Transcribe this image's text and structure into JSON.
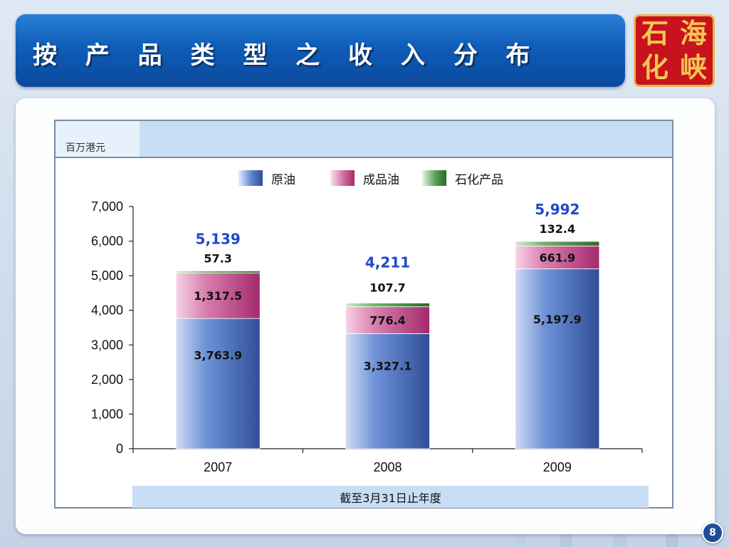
{
  "slide": {
    "title": "按 产 品 类 型 之 收 入 分 布",
    "logo_chars": [
      "石",
      "海",
      "化",
      "峡"
    ],
    "page_number": "8"
  },
  "colors": {
    "title_bar": "#0f5cb8",
    "crude": "#5b82d0",
    "refined": "#d36aa2",
    "petrochemical": "#58a055",
    "total_label": "#1f49c8",
    "logo_red": "#c8121e",
    "logo_gold": "#f3c651"
  },
  "chart_data": {
    "type": "bar",
    "stacked": true,
    "unit_label": "百万港元",
    "period_label": "截至3月31日止年度",
    "categories": [
      "2007",
      "2008",
      "2009"
    ],
    "series": [
      {
        "name": "原油",
        "values": [
          3763.9,
          3327.1,
          5197.9
        ],
        "labels": [
          "3,763.9",
          "3,327.1",
          "5,197.9"
        ]
      },
      {
        "name": "成品油",
        "values": [
          1317.5,
          776.4,
          661.9
        ],
        "labels": [
          "1,317.5",
          "776.4",
          "661.9"
        ]
      },
      {
        "name": "石化产品",
        "values": [
          57.3,
          107.7,
          132.4
        ],
        "labels": [
          "57.3",
          "107.7",
          "132.4"
        ]
      }
    ],
    "totals": [
      "5,139",
      "4,211",
      "5,992"
    ],
    "ylim": [
      0,
      7000
    ],
    "yticks": [
      "0",
      "1,000",
      "2,000",
      "3,000",
      "4,000",
      "5,000",
      "6,000",
      "7,000"
    ],
    "legend_position": "top-center",
    "grid": false
  }
}
